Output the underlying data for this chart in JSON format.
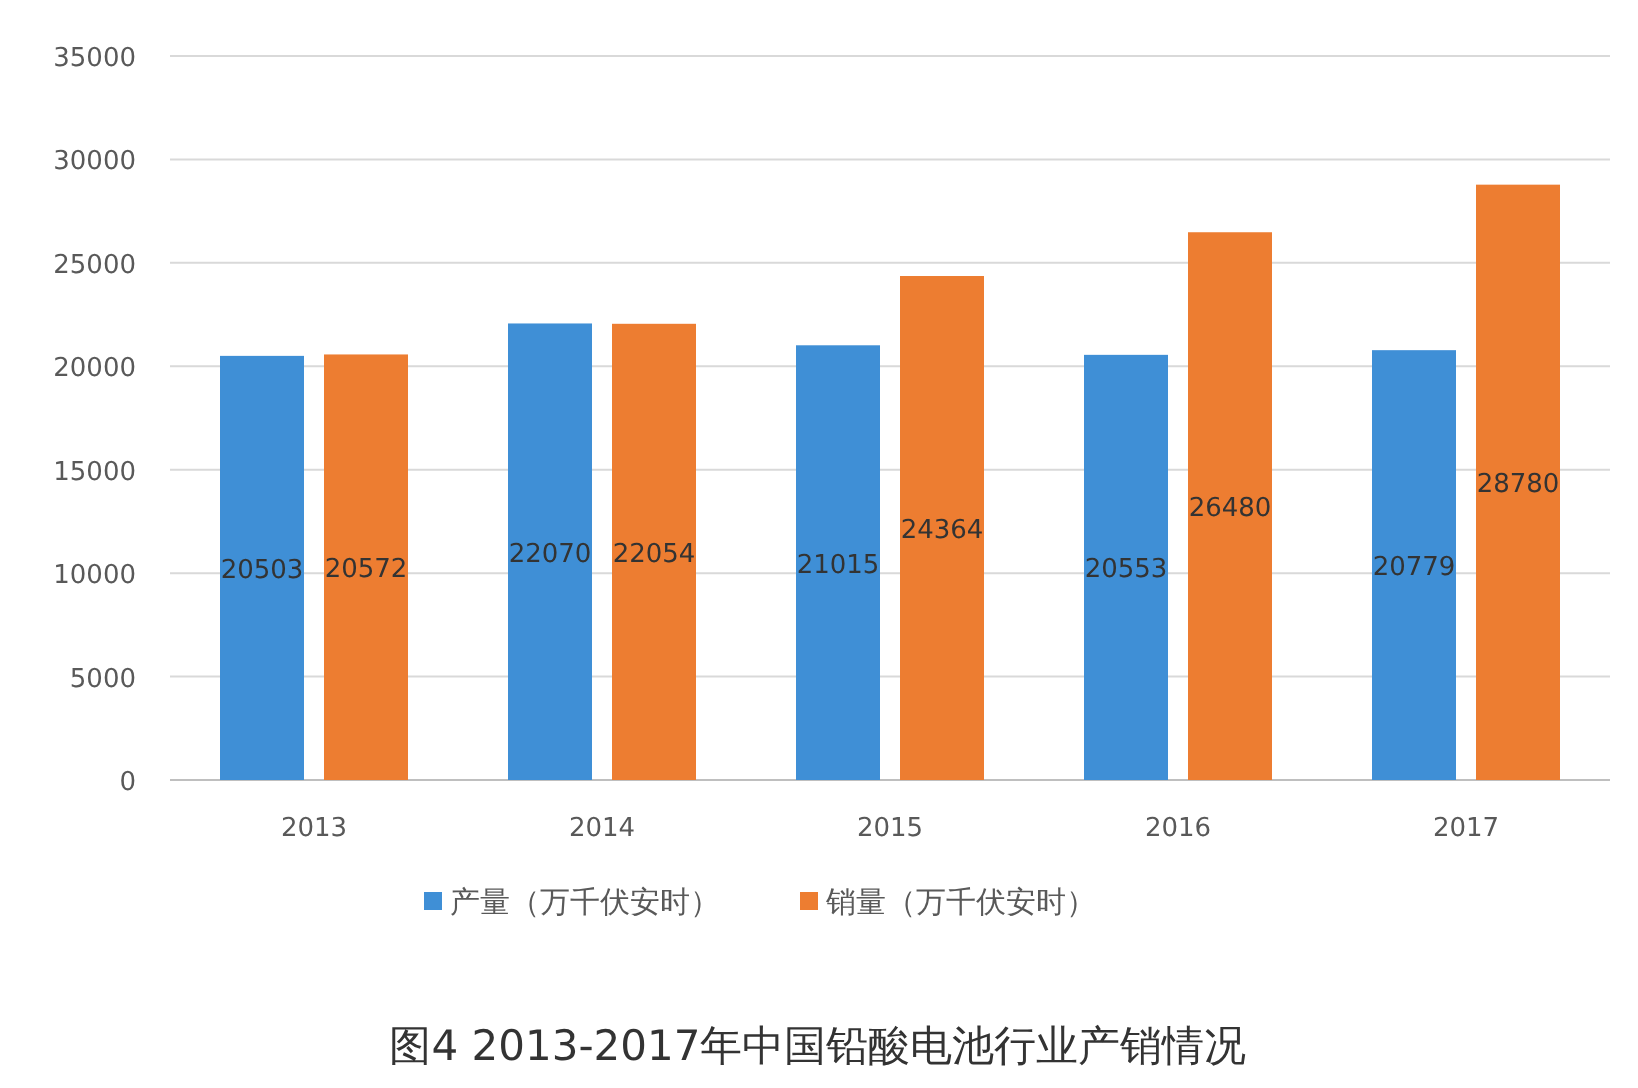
{
  "chart_data": {
    "type": "bar",
    "title": "图4 2013-2017年中国铅酸电池行业产销情况",
    "categories": [
      "2013",
      "2014",
      "2015",
      "2016",
      "2017"
    ],
    "series": [
      {
        "name": "产量（万千伏安时）",
        "color": "#3f8fd6",
        "values": [
          20503,
          22070,
          21015,
          20553,
          20779
        ]
      },
      {
        "name": "销量（万千伏安时）",
        "color": "#ed7d31",
        "values": [
          20572,
          22054,
          24364,
          26480,
          28780
        ]
      }
    ],
    "ylim": [
      0,
      35000
    ],
    "yticks": [
      0,
      5000,
      10000,
      15000,
      20000,
      25000,
      30000,
      35000
    ],
    "grid": "y",
    "legend": "bottom",
    "data_labels": true
  }
}
